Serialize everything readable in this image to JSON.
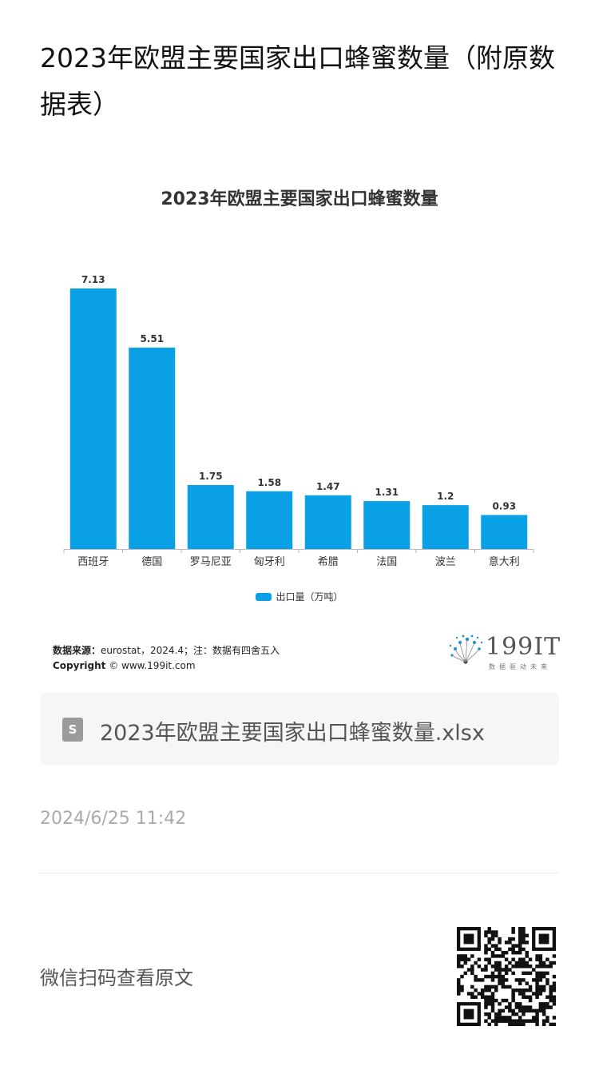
{
  "article": {
    "title": "2023年欧盟主要国家出口蜂蜜数量（附原数据表）",
    "timestamp": "2024/6/25 11:42",
    "scan_prompt": "微信扫码查看原文"
  },
  "chart_data": {
    "type": "bar",
    "title": "2023年欧盟主要国家出口蜂蜜数量",
    "categories": [
      "西班牙",
      "德国",
      "罗马尼亚",
      "匈牙利",
      "希腊",
      "法国",
      "波兰",
      "意大利"
    ],
    "series": [
      {
        "name": "出口量（万吨）",
        "values": [
          7.13,
          5.51,
          1.75,
          1.58,
          1.47,
          1.31,
          1.2,
          0.93
        ]
      }
    ],
    "value_labels": [
      "7.13",
      "5.51",
      "1.75",
      "1.58",
      "1.47",
      "1.31",
      "1.2",
      "0.93"
    ],
    "ylim": [
      0,
      7.13
    ],
    "grid": false,
    "legend_position": "bottom",
    "bar_color": "#0aa0e6",
    "source_label": "数据来源：",
    "source_text": "eurostat，2024.4；注：数据有四舍五入",
    "copyright_label": "Copyright",
    "copyright_text": "© www.199it.com"
  },
  "logo": {
    "text": "199IT",
    "subtitle": "数据驱动未来"
  },
  "attachment": {
    "icon": "spreadsheet-file-icon",
    "icon_letter": "S",
    "file_name": "2023年欧盟主要国家出口蜂蜜数量.xlsx"
  },
  "colors": {
    "accent": "#0aa0e6",
    "file_card_bg": "#f6f6f6",
    "timestamp": "#aaaaaa"
  }
}
